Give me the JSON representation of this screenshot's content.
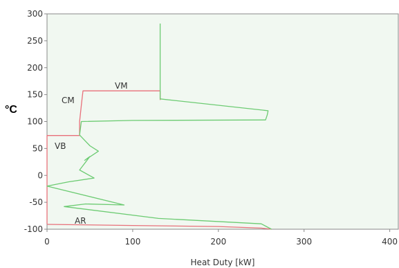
{
  "chart_data": {
    "type": "line",
    "title": "",
    "xlabel": "Heat Duty [kW]",
    "ylabel": "°C",
    "xlim": [
      0,
      410
    ],
    "ylim": [
      -100,
      300
    ],
    "xticks": [
      0,
      100,
      200,
      300,
      400
    ],
    "yticks": [
      -100,
      -50,
      0,
      50,
      100,
      150,
      200,
      250,
      300
    ],
    "grid": false,
    "legend": "none",
    "colors": {
      "background": "#f1f8f1",
      "hot": "#e8707a",
      "cold": "#6ccb72",
      "frame": "#888888"
    },
    "series": [
      {
        "color": "#e8707a",
        "x": [
          0,
          0,
          0,
          0,
          38,
          38,
          40,
          42,
          132,
          132,
          132
        ],
        "y": [
          -90,
          -20,
          74,
          74,
          74,
          100,
          130,
          157,
          157,
          157,
          140
        ]
      },
      {
        "color": "#e8707a",
        "x": [
          0,
          100,
          200,
          250,
          262
        ],
        "y": [
          -91,
          -93,
          -95,
          -98,
          -100
        ]
      },
      {
        "color": "#6ccb72",
        "x": [
          262,
          250,
          130,
          20,
          45,
          90,
          0,
          25,
          55,
          38,
          50,
          44,
          60,
          50,
          38,
          40,
          100,
          255,
          257,
          258,
          132,
          132,
          132
        ],
        "y": [
          -100,
          -90,
          -80,
          -58,
          -53,
          -55,
          -20,
          -12,
          -5,
          10,
          35,
          28,
          45,
          55,
          75,
          100,
          102,
          103,
          112,
          120,
          142,
          260,
          282
        ]
      }
    ],
    "annotations": [
      "VM",
      "CM",
      "VB",
      "AR"
    ]
  }
}
